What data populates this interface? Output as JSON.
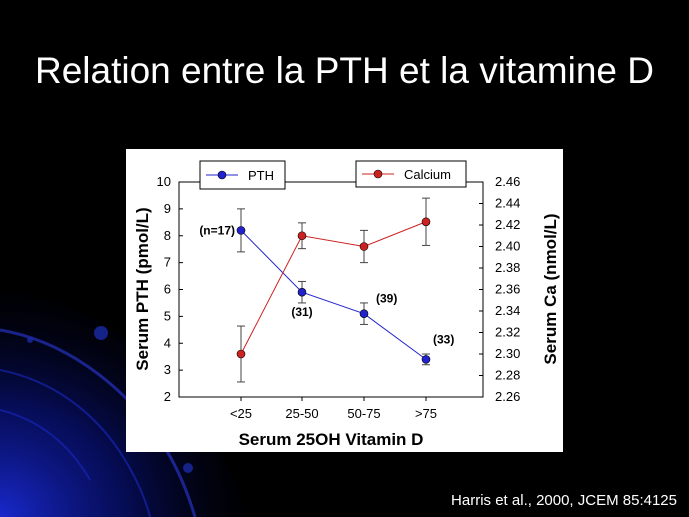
{
  "slide": {
    "title": "Relation entre la PTH et la vitamine D",
    "citation": "Harris et al., 2000, JCEM 85:4125"
  },
  "chart_data": {
    "type": "line",
    "categories": [
      "<25",
      "25-50",
      "50-75",
      ">75"
    ],
    "xlabel": "Serum 25OH Vitamin D",
    "ylabel_left": "Serum PTH (pmol/L)",
    "ylabel_right": "Serum Ca (nmol/L)",
    "ylim_left": [
      2,
      10
    ],
    "yticks_left": [
      2,
      3,
      4,
      5,
      6,
      7,
      8,
      9,
      10
    ],
    "ylim_right": [
      2.26,
      2.46
    ],
    "yticks_right": [
      "2.26",
      "2.28",
      "2.30",
      "2.32",
      "2.34",
      "2.36",
      "2.38",
      "2.40",
      "2.42",
      "2.44",
      "2.46"
    ],
    "grid": false,
    "series": [
      {
        "name": "PTH",
        "axis": "left",
        "color": "#2222cc",
        "values": [
          8.2,
          5.9,
          5.1,
          3.4
        ],
        "err_low": [
          7.4,
          5.5,
          4.7,
          3.2
        ],
        "err_high": [
          9.0,
          6.3,
          5.5,
          3.6
        ]
      },
      {
        "name": "Calcium",
        "axis": "right",
        "color": "#cc2222",
        "values": [
          2.3,
          2.41,
          2.4,
          2.423
        ],
        "err_low": [
          2.274,
          2.398,
          2.385,
          2.401
        ],
        "err_high": [
          2.326,
          2.422,
          2.415,
          2.445
        ]
      }
    ],
    "annotations": [
      {
        "label": "(n=17)",
        "category": 0
      },
      {
        "label": "(31)",
        "category": 1
      },
      {
        "label": "(39)",
        "category": 2
      },
      {
        "label": "(33)",
        "category": 3
      }
    ]
  }
}
